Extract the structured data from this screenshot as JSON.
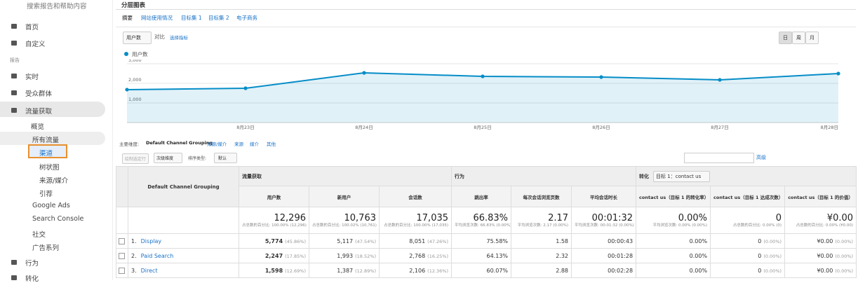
{
  "sidebar": {
    "search": "搜索报告和帮助内容",
    "items": [
      "首页",
      "自定义",
      "报告",
      "实时",
      "受众群体",
      "流量获取",
      "概览",
      "所有流量",
      "渠道",
      "树状图",
      "来源/媒介",
      "引荐",
      "Google Ads",
      "Search Console",
      "社交",
      "广告系列",
      "行为",
      "转化"
    ]
  },
  "tab": "分层图表",
  "subtabs": [
    "摘要",
    "网站使用情况",
    "目标集 1",
    "目标集 2",
    "电子商务"
  ],
  "metric_selector": "用户数",
  "compare": "对比",
  "select_metric": "选择指标",
  "granularity": [
    "日",
    "周",
    "月"
  ],
  "chart": {
    "type": "line",
    "series": [
      {
        "name": "用户数",
        "color": "#058dc7",
        "values": [
          1680,
          1750,
          2536,
          2357,
          2321,
          2179,
          2500
        ]
      }
    ],
    "x": [
      null,
      "8月23日",
      "8月24日",
      "8月25日",
      "8月26日",
      "8月27日",
      "8月28日"
    ],
    "ylim": [
      0,
      3000
    ],
    "yticks": [
      {
        "value": 1000,
        "label": "1,000"
      },
      {
        "value": 2000,
        "label": "2,000"
      },
      {
        "value": 3000,
        "label": "3,000"
      }
    ]
  },
  "dimension_bar": {
    "label": "主要维度:",
    "options": [
      "Default Channel Grouping",
      "来源/媒介",
      "来源",
      "媒介",
      "其他"
    ]
  },
  "toolbar": {
    "plot_rows": "绘制选定行",
    "secondary": "次级维度",
    "sort_label": "排序类型:",
    "sort": "默认",
    "advanced": "高级"
  },
  "table": {
    "dimension": "Default Channel Grouping",
    "groups": [
      "流量获取",
      "行为",
      "转化"
    ],
    "goal": "目标 1：contact us",
    "columns": [
      "用户数",
      "新用户",
      "会话数",
      "跳出率",
      "每次会话浏览页数",
      "平均会话时长",
      "contact us（目标 1 的转化率）",
      "contact us（目标 1 达成次数）",
      "contact us（目标 1 的价值）"
    ],
    "totals": [
      {
        "value": "12,296",
        "note": "占总数的百分比: 100.00% (12,296)"
      },
      {
        "value": "10,763",
        "note": "占总数的百分比: 100.02% (10,761)"
      },
      {
        "value": "17,035",
        "note": "占总数的百分比: 100.00% (17,035)"
      },
      {
        "value": "66.83%",
        "note": "平均浏览次数: 66.83% (0.00%)"
      },
      {
        "value": "2.17",
        "note": "平均浏览次数: 2.17 (0.00%)"
      },
      {
        "value": "00:01:32",
        "note": "平均浏览次数: 00:01:32 (0.00%)"
      },
      {
        "value": "0.00%",
        "note": "平均浏览次数: 0.00% (0.00%)"
      },
      {
        "value": "0",
        "note": "占总数的百分比: 0.00% (0)"
      },
      {
        "value": "¥0.00",
        "note": "占总数的百分比: 0.00% (¥0.00)"
      }
    ],
    "rows": [
      {
        "index": "1.",
        "name": "Display",
        "cells": [
          {
            "value": "5,774",
            "pct": "(45.86%)"
          },
          {
            "value": "5,117",
            "pct": "(47.54%)"
          },
          {
            "value": "8,051",
            "pct": "(47.26%)"
          },
          {
            "value": "75.58%"
          },
          {
            "value": "1.58"
          },
          {
            "value": "00:00:43"
          },
          {
            "value": "0.00%"
          },
          {
            "value": "0",
            "pct": "(0.00%)"
          },
          {
            "value": "¥0.00",
            "pct": "(0.00%)"
          }
        ]
      },
      {
        "index": "2.",
        "name": "Paid Search",
        "cells": [
          {
            "value": "2,247",
            "pct": "(17.85%)"
          },
          {
            "value": "1,993",
            "pct": "(18.52%)"
          },
          {
            "value": "2,768",
            "pct": "(16.25%)"
          },
          {
            "value": "64.13%"
          },
          {
            "value": "2.32"
          },
          {
            "value": "00:01:28"
          },
          {
            "value": "0.00%"
          },
          {
            "value": "0",
            "pct": "(0.00%)"
          },
          {
            "value": "¥0.00",
            "pct": "(0.00%)"
          }
        ]
      },
      {
        "index": "3.",
        "name": "Direct",
        "cells": [
          {
            "value": "1,598",
            "pct": "(12.69%)"
          },
          {
            "value": "1,387",
            "pct": "(12.89%)"
          },
          {
            "value": "2,106",
            "pct": "(12.36%)"
          },
          {
            "value": "60.07%"
          },
          {
            "value": "2.88"
          },
          {
            "value": "00:02:28"
          },
          {
            "value": "0.00%"
          },
          {
            "value": "0",
            "pct": "(0.00%)"
          },
          {
            "value": "¥0.00",
            "pct": "(0.00%)"
          }
        ]
      }
    ]
  }
}
